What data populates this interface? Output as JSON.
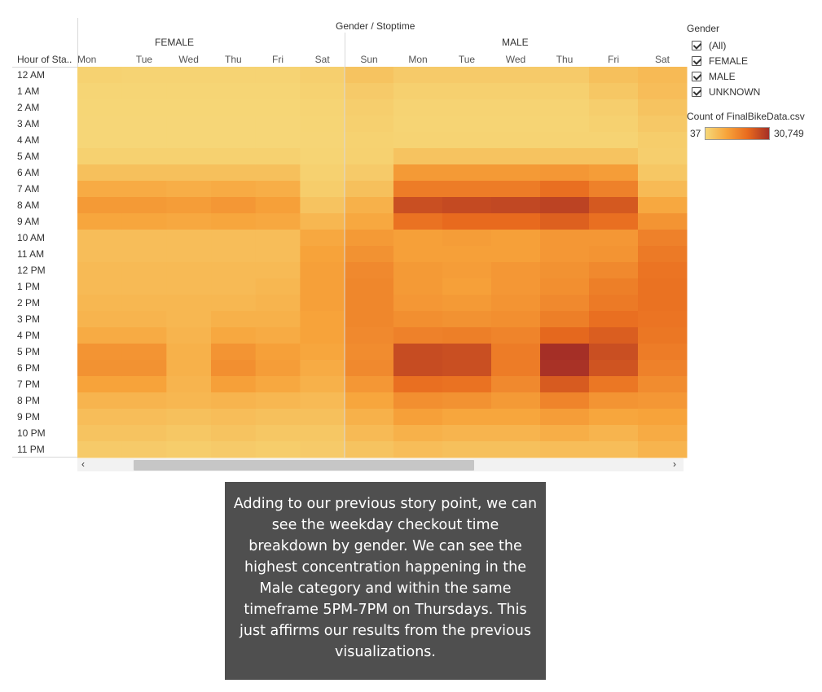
{
  "chart_data": {
    "type": "heatmap",
    "header": "Gender  /  Stoptime",
    "row_header": "Hour of Sta..",
    "groups": [
      {
        "name": "FEMALE",
        "days": [
          "Mon",
          "Tue",
          "Wed",
          "Thu",
          "Fri",
          "Sat"
        ]
      },
      {
        "name": "MALE",
        "days": [
          "Sun",
          "Mon",
          "Tue",
          "Wed",
          "Thu",
          "Fri",
          "Sat"
        ]
      }
    ],
    "hours": [
      "12 AM",
      "1 AM",
      "2 AM",
      "3 AM",
      "4 AM",
      "5 AM",
      "6 AM",
      "7 AM",
      "8 AM",
      "9 AM",
      "10 AM",
      "11 AM",
      "12 PM",
      "1 PM",
      "2 PM",
      "3 PM",
      "4 PM",
      "5 PM",
      "6 PM",
      "7 PM",
      "8 PM",
      "9 PM",
      "10 PM",
      "11 PM"
    ],
    "color_range": [
      37,
      30749
    ],
    "color_scale": [
      "#f6d879",
      "#f7a43b",
      "#e86a1e",
      "#a52f26"
    ],
    "values": {
      "FEMALE": [
        [
          600,
          500,
          500,
          500,
          500,
          900
        ],
        [
          300,
          300,
          300,
          300,
          300,
          600
        ],
        [
          200,
          200,
          200,
          200,
          200,
          400
        ],
        [
          150,
          150,
          150,
          150,
          150,
          300
        ],
        [
          150,
          150,
          150,
          150,
          150,
          250
        ],
        [
          700,
          700,
          700,
          700,
          700,
          350
        ],
        [
          3000,
          3000,
          3000,
          3000,
          3000,
          700
        ],
        [
          6500,
          6500,
          6000,
          6500,
          6000,
          1200
        ],
        [
          9500,
          9500,
          9000,
          10000,
          8500,
          2500
        ],
        [
          7500,
          7500,
          7000,
          7500,
          7000,
          4500
        ],
        [
          3500,
          3500,
          3500,
          3500,
          3500,
          7000
        ],
        [
          3500,
          3500,
          3500,
          3500,
          3500,
          8000
        ],
        [
          4000,
          4000,
          4000,
          4000,
          4000,
          8500
        ],
        [
          4000,
          4000,
          4000,
          4000,
          4500,
          8500
        ],
        [
          4500,
          4500,
          4500,
          4500,
          5000,
          8500
        ],
        [
          5000,
          5000,
          4500,
          5500,
          5500,
          8000
        ],
        [
          6500,
          6500,
          5000,
          7000,
          6500,
          8000
        ],
        [
          10500,
          10500,
          5500,
          10500,
          8500,
          7500
        ],
        [
          11000,
          11000,
          5500,
          11500,
          9000,
          6500
        ],
        [
          8000,
          8000,
          5000,
          8500,
          7000,
          5500
        ],
        [
          5000,
          5000,
          4500,
          5000,
          4500,
          4000
        ],
        [
          3500,
          3500,
          3000,
          3500,
          3000,
          3000
        ],
        [
          2500,
          2500,
          2000,
          2500,
          2000,
          2000
        ],
        [
          1500,
          1500,
          1200,
          1500,
          1200,
          1500
        ]
      ],
      "MALE": [
        [
          2500,
          1500,
          1500,
          1500,
          1500,
          3000,
          4000
        ],
        [
          1500,
          800,
          800,
          800,
          800,
          2000,
          3500
        ],
        [
          1000,
          500,
          500,
          500,
          500,
          1000,
          2500
        ],
        [
          800,
          400,
          400,
          400,
          400,
          700,
          1800
        ],
        [
          600,
          500,
          500,
          500,
          500,
          500,
          1200
        ],
        [
          700,
          2500,
          2500,
          2500,
          2500,
          2500,
          1000
        ],
        [
          1500,
          9500,
          9500,
          9500,
          10000,
          9000,
          2000
        ],
        [
          3000,
          15000,
          15000,
          15000,
          17500,
          14000,
          4000
        ],
        [
          5500,
          24000,
          25000,
          25500,
          26500,
          22000,
          7000
        ],
        [
          7000,
          17000,
          18500,
          18500,
          20500,
          17500,
          10500
        ],
        [
          9500,
          8500,
          9000,
          8500,
          10000,
          10000,
          14000
        ],
        [
          11000,
          8500,
          8500,
          8500,
          10000,
          10500,
          15500
        ],
        [
          12500,
          9500,
          9000,
          10000,
          11000,
          12500,
          16500
        ],
        [
          13000,
          9500,
          8500,
          10000,
          11500,
          14500,
          17000
        ],
        [
          13000,
          10000,
          9500,
          10500,
          12500,
          15500,
          17000
        ],
        [
          13000,
          11500,
          11000,
          11500,
          14500,
          17500,
          16500
        ],
        [
          12500,
          14000,
          14500,
          13500,
          19000,
          21000,
          16000
        ],
        [
          12000,
          24500,
          24000,
          15000,
          30749,
          24000,
          15000
        ],
        [
          12500,
          24500,
          24000,
          15000,
          30000,
          23000,
          14000
        ],
        [
          10000,
          17500,
          17000,
          12500,
          21500,
          16000,
          12000
        ],
        [
          7500,
          11500,
          11000,
          9500,
          13500,
          10500,
          10000
        ],
        [
          5500,
          8500,
          7500,
          7500,
          9000,
          7500,
          8000
        ],
        [
          4000,
          5500,
          5000,
          5000,
          6000,
          5000,
          6500
        ],
        [
          2500,
          3500,
          3000,
          3000,
          3500,
          3500,
          5000
        ]
      ]
    },
    "legend_title": "Count of FinalBikeData.csv"
  },
  "filter": {
    "title": "Gender",
    "options": [
      {
        "label": "(All)",
        "checked": true
      },
      {
        "label": "FEMALE",
        "checked": true
      },
      {
        "label": "MALE",
        "checked": true
      },
      {
        "label": "UNKNOWN",
        "checked": true
      }
    ]
  },
  "legend": {
    "min_label": "37",
    "max_label": "30,749"
  },
  "scrollbar": {
    "left": "‹",
    "right": "›"
  },
  "caption": "Adding to our previous story point, we can see the weekday checkout time breakdown by gender. We can see the highest concentration happening in the Male category and within the same timeframe 5PM-7PM on Thursdays. This just affirms our results from the previous visualizations."
}
